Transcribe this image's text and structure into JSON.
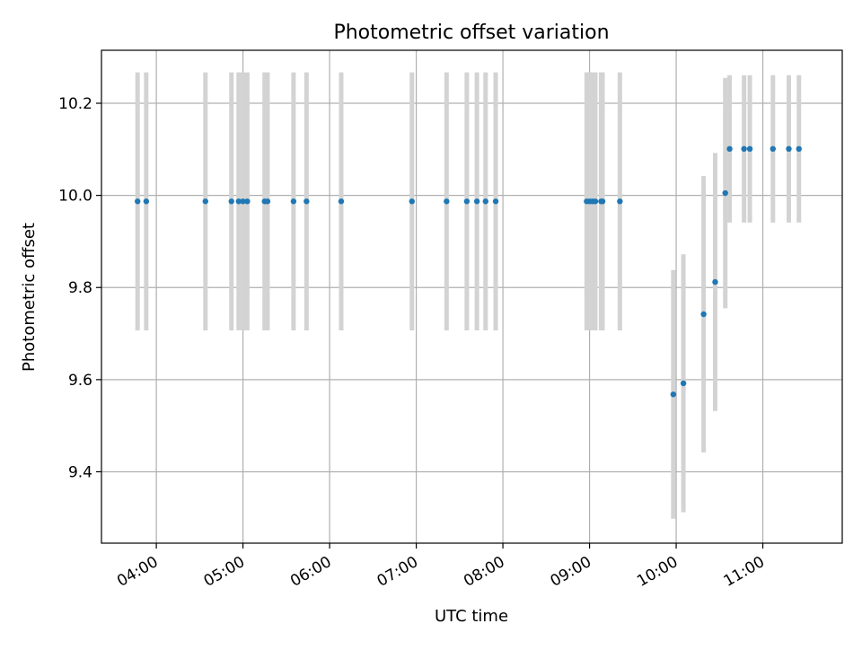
{
  "chart_data": {
    "type": "scatter",
    "title": "Photometric offset variation",
    "xlabel": "UTC time",
    "ylabel": "Photometric offset",
    "x_unit": "UTC hour",
    "xlim": [
      "03:22",
      "11:55"
    ],
    "ylim": [
      9.245,
      10.315
    ],
    "x_ticks": [
      "04:00",
      "05:00",
      "06:00",
      "07:00",
      "08:00",
      "09:00",
      "10:00",
      "11:00"
    ],
    "y_ticks": [
      "9.4",
      "9.6",
      "9.8",
      "10.0",
      "10.2"
    ],
    "grid": true,
    "colors": {
      "points": "#1f77b4",
      "errorbars": "#d3d3d3",
      "grid": "#b0b0b0"
    },
    "series": [
      {
        "x": [
          "03:47",
          "03:53",
          "04:34",
          "04:52",
          "04:57",
          "05:00",
          "05:03",
          "05:15",
          "05:17",
          "05:35",
          "05:44",
          "06:08",
          "06:57",
          "07:21",
          "07:35",
          "07:42",
          "07:48",
          "07:55",
          "08:58",
          "09:00",
          "09:02",
          "09:04",
          "09:08",
          "09:09",
          "09:21",
          "09:58",
          "10:05",
          "10:19",
          "10:27",
          "10:34",
          "10:37",
          "10:47",
          "10:51",
          "11:07",
          "11:18",
          "11:25"
        ],
        "y": [
          9.987,
          9.987,
          9.987,
          9.987,
          9.987,
          9.987,
          9.987,
          9.987,
          9.987,
          9.987,
          9.987,
          9.987,
          9.987,
          9.987,
          9.987,
          9.987,
          9.987,
          9.987,
          9.987,
          9.987,
          9.987,
          9.987,
          9.987,
          9.987,
          9.987,
          9.568,
          9.592,
          9.742,
          9.812,
          10.005,
          10.101,
          10.101,
          10.101,
          10.101,
          10.101,
          10.101
        ],
        "yerr": [
          0.28,
          0.28,
          0.28,
          0.28,
          0.28,
          0.28,
          0.28,
          0.28,
          0.28,
          0.28,
          0.28,
          0.28,
          0.28,
          0.28,
          0.28,
          0.28,
          0.28,
          0.28,
          0.28,
          0.28,
          0.28,
          0.28,
          0.28,
          0.28,
          0.28,
          0.27,
          0.28,
          0.3,
          0.28,
          0.25,
          0.16,
          0.16,
          0.16,
          0.16,
          0.16,
          0.16
        ]
      }
    ]
  }
}
